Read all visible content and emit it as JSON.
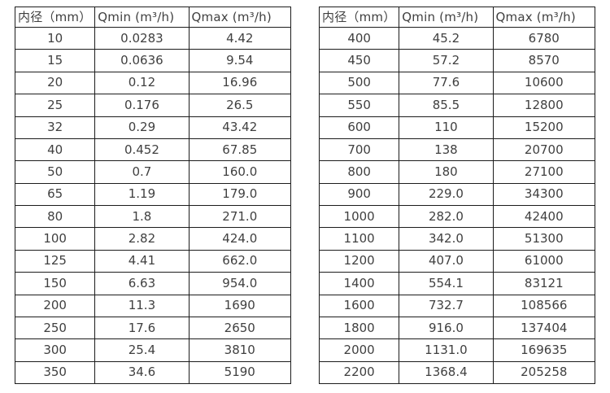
{
  "page": {
    "background_color": "#ffffff",
    "border_color": "#1c1c1c",
    "text_color": "#404040"
  },
  "tables": [
    {
      "name": "flow-range-table-small-diameters",
      "headers": [
        "内径（mm）",
        "Qmin (m³/h)",
        "Qmax (m³/h)"
      ],
      "rows": [
        [
          "10",
          "0.0283",
          "4.42"
        ],
        [
          "15",
          "0.0636",
          "9.54"
        ],
        [
          "20",
          "0.12",
          "16.96"
        ],
        [
          "25",
          "0.176",
          "26.5"
        ],
        [
          "32",
          "0.29",
          "43.42"
        ],
        [
          "40",
          "0.452",
          "67.85"
        ],
        [
          "50",
          "0.7",
          "160.0"
        ],
        [
          "65",
          "1.19",
          "179.0"
        ],
        [
          "80",
          "1.8",
          "271.0"
        ],
        [
          "100",
          "2.82",
          "424.0"
        ],
        [
          "125",
          "4.41",
          "662.0"
        ],
        [
          "150",
          "6.63",
          "954.0"
        ],
        [
          "200",
          "11.3",
          "1690"
        ],
        [
          "250",
          "17.6",
          "2650"
        ],
        [
          "300",
          "25.4",
          "3810"
        ],
        [
          "350",
          "34.6",
          "5190"
        ]
      ]
    },
    {
      "name": "flow-range-table-large-diameters",
      "headers": [
        "内径（mm）",
        "Qmin (m³/h)",
        "Qmax (m³/h)"
      ],
      "rows": [
        [
          "400",
          "45.2",
          "6780"
        ],
        [
          "450",
          "57.2",
          "8570"
        ],
        [
          "500",
          "77.6",
          "10600"
        ],
        [
          "550",
          "85.5",
          "12800"
        ],
        [
          "600",
          "110",
          "15200"
        ],
        [
          "700",
          "138",
          "20700"
        ],
        [
          "800",
          "180",
          "27100"
        ],
        [
          "900",
          "229.0",
          "34300"
        ],
        [
          "1000",
          "282.0",
          "42400"
        ],
        [
          "1100",
          "342.0",
          "51300"
        ],
        [
          "1200",
          "407.0",
          "61000"
        ],
        [
          "1400",
          "554.1",
          "83121"
        ],
        [
          "1600",
          "732.7",
          "108566"
        ],
        [
          "1800",
          "916.0",
          "137404"
        ],
        [
          "2000",
          "1131.0",
          "169635"
        ],
        [
          "2200",
          "1368.4",
          "205258"
        ]
      ]
    }
  ]
}
